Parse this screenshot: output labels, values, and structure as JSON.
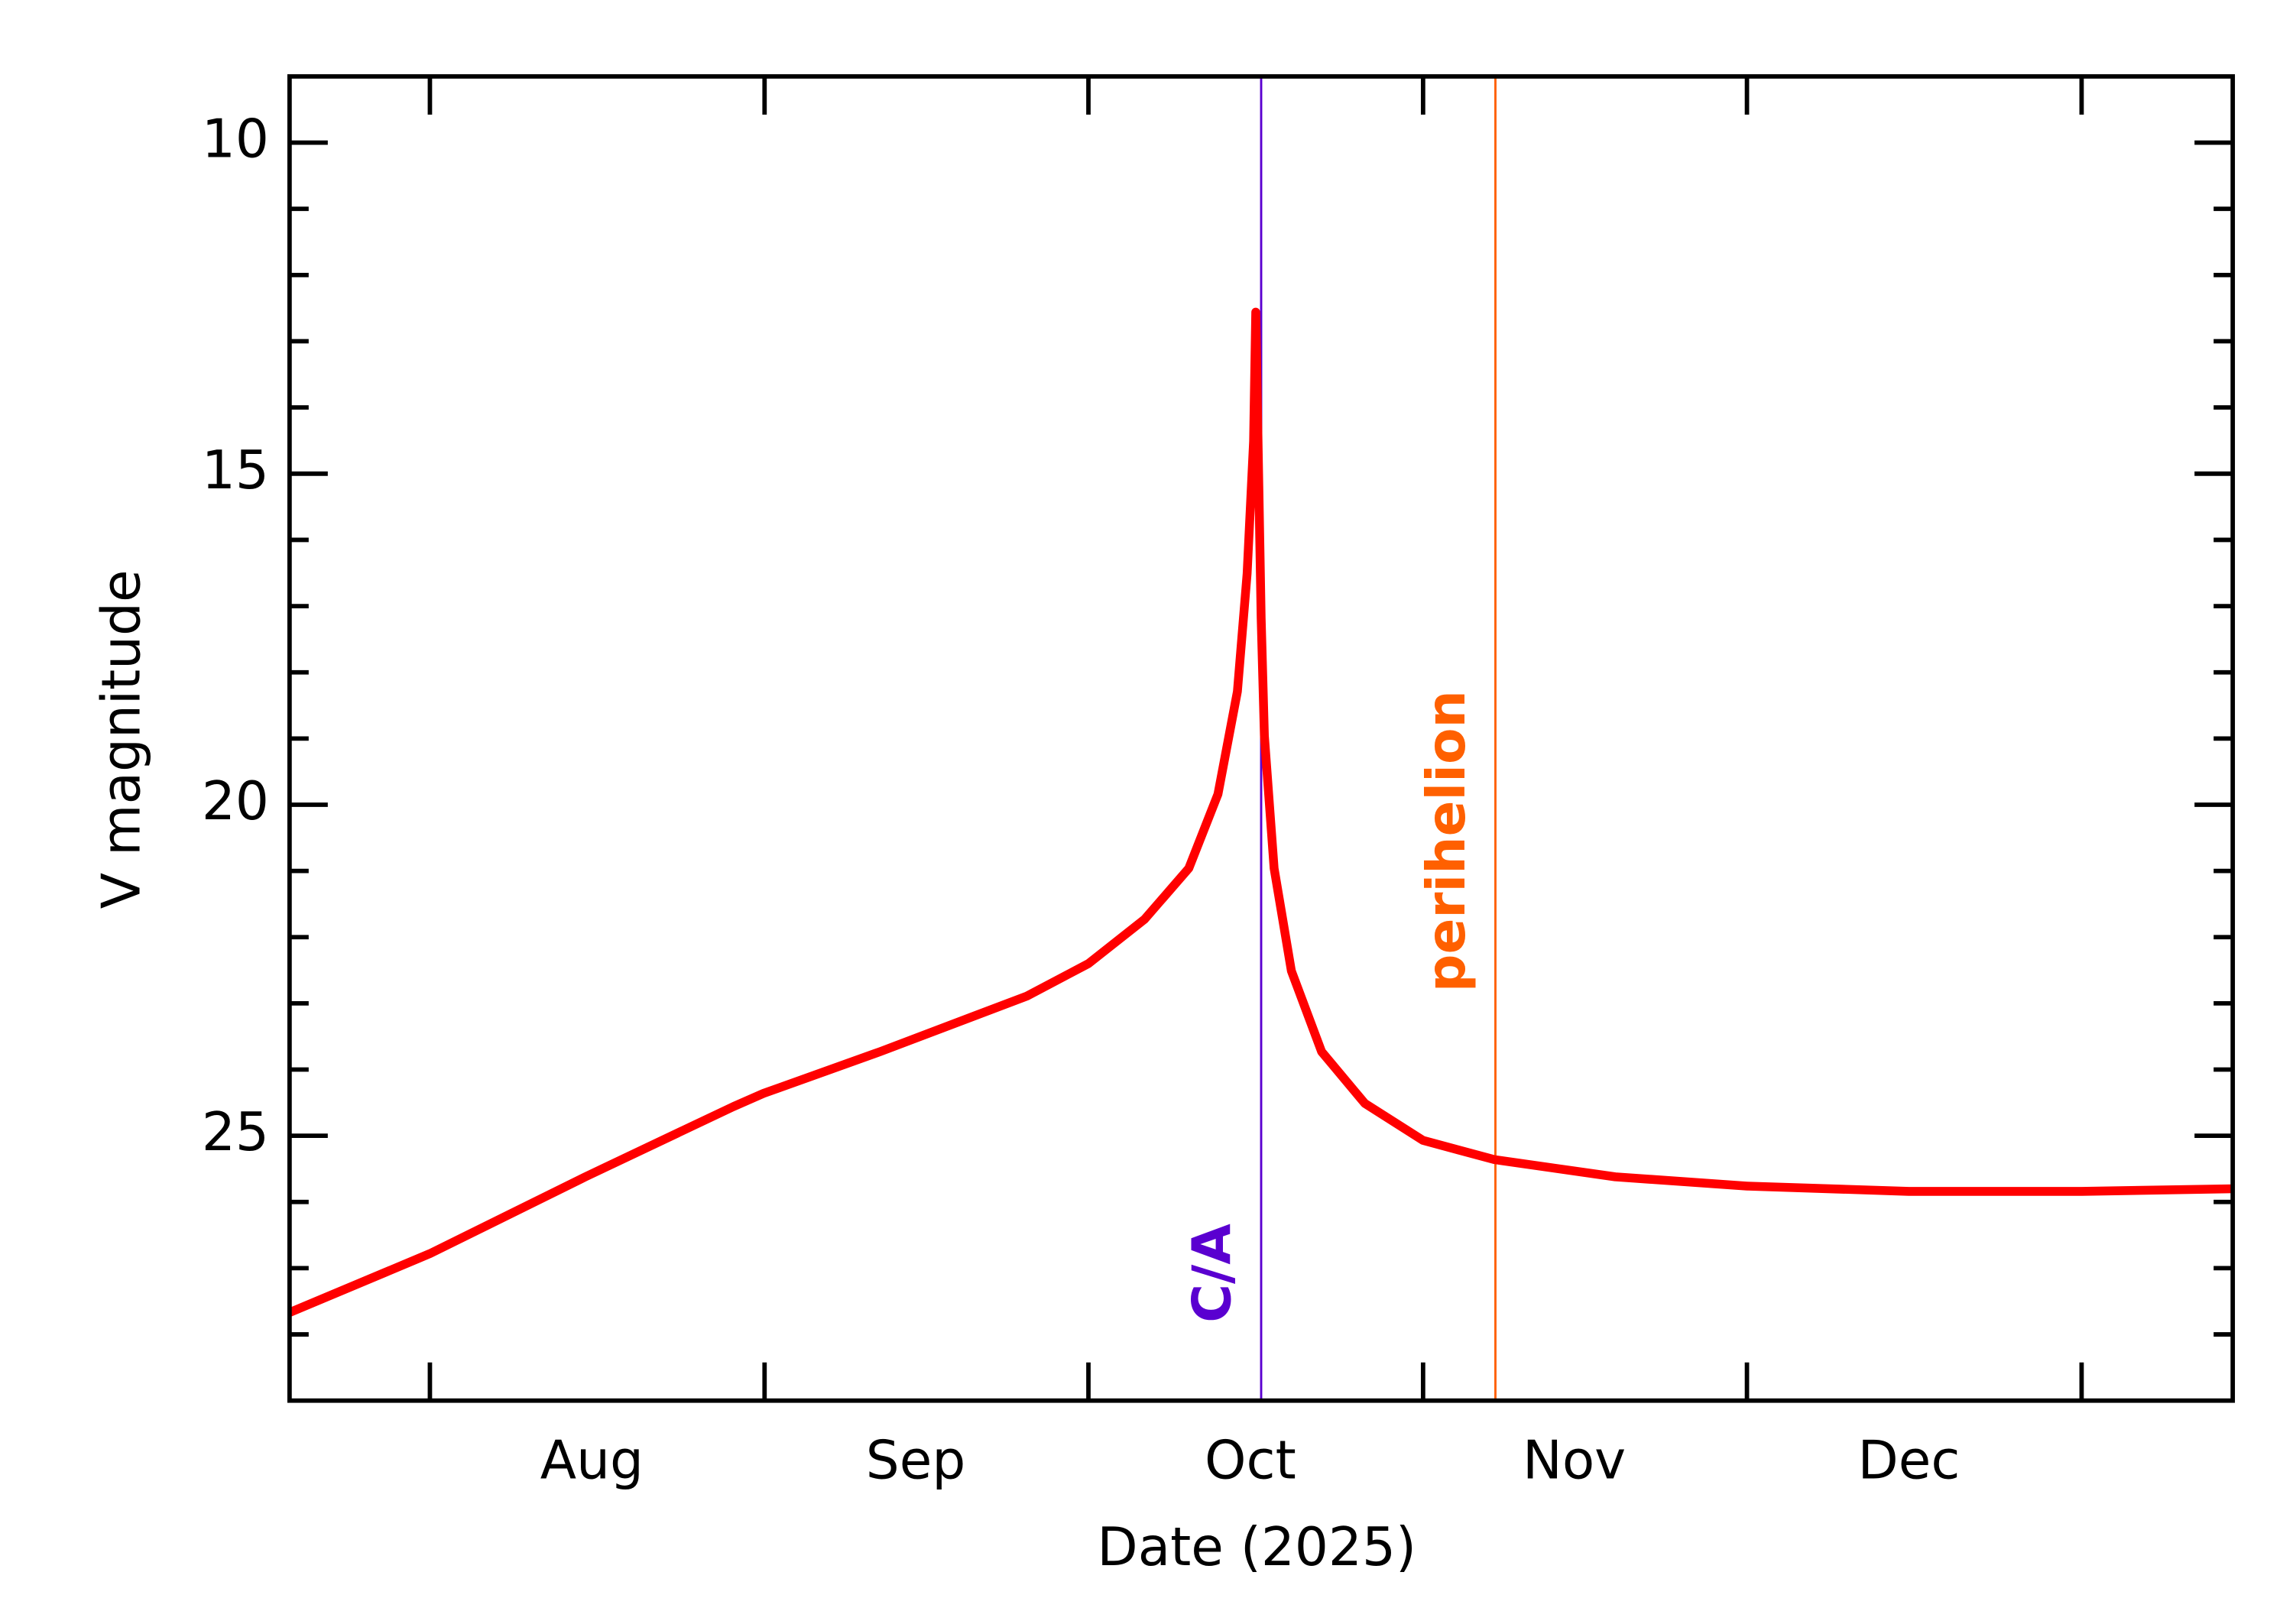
{
  "chart_data": {
    "type": "line",
    "x_label": "Date (2025)",
    "y_label": "V magnitude",
    "xlim": [
      200,
      380
    ],
    "ylim": [
      29,
      9
    ],
    "yticks": [
      10,
      15,
      20,
      25
    ],
    "y_minor_ticks": [
      11,
      12,
      13,
      14,
      16,
      17,
      18,
      19,
      21,
      22,
      23,
      24,
      26,
      27,
      28
    ],
    "x_month_ticks": [
      213,
      244,
      274,
      305,
      335,
      366
    ],
    "xticks": [
      {
        "value": 228,
        "label": "Aug"
      },
      {
        "value": 258,
        "label": "Sep"
      },
      {
        "value": 289,
        "label": "Oct"
      },
      {
        "value": 319,
        "label": "Nov"
      },
      {
        "value": 350,
        "label": "Dec"
      }
    ],
    "x": [
      200,
      213,
      227.4,
      241.1,
      243.9,
      254.7,
      268.3,
      274,
      279.2,
      283.3,
      286,
      287.8,
      288.7,
      289.3,
      289.5,
      290,
      290.3,
      291.2,
      292.8,
      295.6,
      299.6,
      305,
      311.6,
      322.8,
      335,
      350,
      366,
      380
    ],
    "series": [
      {
        "color": "#ff0000",
        "values": [
          27.67,
          26.78,
          25.62,
          24.56,
          24.36,
          23.73,
          22.89,
          22.4,
          21.73,
          20.96,
          19.84,
          18.29,
          16.51,
          14.51,
          12.56,
          17.18,
          18.96,
          20.96,
          22.51,
          23.73,
          24.51,
          25.07,
          25.36,
          25.62,
          25.76,
          25.84,
          25.84,
          25.8
        ]
      }
    ],
    "annotations": [
      {
        "text": "C/A",
        "x": 290,
        "color": "#5a00d0"
      },
      {
        "text": "perihelion",
        "x": 311.7,
        "color": "#ff6000"
      }
    ]
  }
}
